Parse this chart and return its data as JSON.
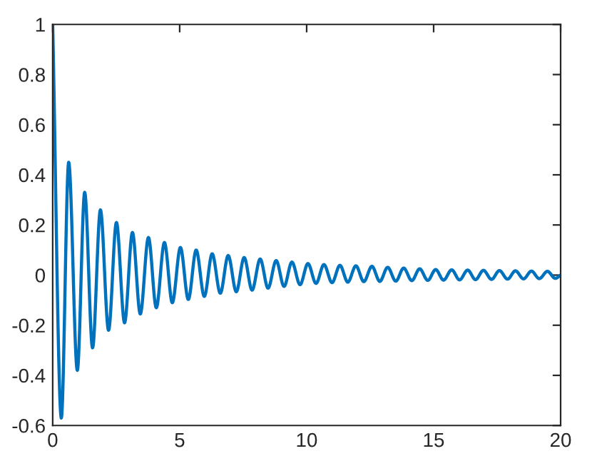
{
  "chart_data": {
    "type": "line",
    "xlim": [
      0,
      20
    ],
    "ylim": [
      -0.6,
      1
    ],
    "xticks": [
      0,
      5,
      10,
      15,
      20
    ],
    "yticks": [
      -0.6,
      -0.4,
      -0.2,
      0,
      0.2,
      0.4,
      0.6,
      0.8,
      1
    ],
    "grid": false,
    "marker": "none",
    "line_style": "solid",
    "series": [
      {
        "color": "#0072bd",
        "x": [
          0,
          0.34,
          0.63,
          0.97,
          1.26,
          1.57,
          1.88,
          2.2,
          2.51,
          2.83,
          3.14,
          3.45,
          3.77,
          4.08,
          4.4,
          4.71,
          5.03,
          5.34,
          5.65,
          5.97,
          6.28,
          6.6,
          6.91,
          7.23,
          7.54,
          7.85,
          8.17,
          8.48,
          8.8,
          9.11,
          9.42,
          9.74,
          10.05,
          10.37,
          10.68,
          11.0,
          11.31,
          11.62,
          11.94,
          12.25,
          12.57,
          12.88,
          13.19,
          13.51,
          13.82,
          14.14,
          14.45,
          14.77,
          15.08,
          15.39,
          15.71,
          16.02,
          16.34,
          16.65,
          16.96,
          17.28,
          17.59,
          17.91,
          18.22,
          18.54,
          18.85,
          19.16,
          19.48,
          19.79,
          20
        ],
        "values": [
          1.0,
          -0.57,
          0.45,
          -0.38,
          0.33,
          -0.29,
          0.26,
          -0.22,
          0.21,
          -0.19,
          0.17,
          -0.155,
          0.15,
          -0.13,
          0.13,
          -0.11,
          0.11,
          -0.097,
          0.1,
          -0.085,
          0.085,
          -0.072,
          0.078,
          -0.066,
          0.07,
          -0.06,
          0.064,
          -0.052,
          0.058,
          -0.045,
          0.052,
          -0.038,
          0.046,
          -0.033,
          0.042,
          -0.03,
          0.039,
          -0.028,
          0.037,
          -0.026,
          0.035,
          -0.025,
          0.031,
          -0.024,
          0.028,
          -0.022,
          0.025,
          -0.021,
          0.022,
          -0.02,
          0.021,
          -0.019,
          0.02,
          -0.018,
          0.019,
          -0.017,
          0.018,
          -0.016,
          0.017,
          -0.015,
          0.016,
          -0.014,
          0.015,
          -0.013,
          0.0
        ]
      }
    ]
  }
}
